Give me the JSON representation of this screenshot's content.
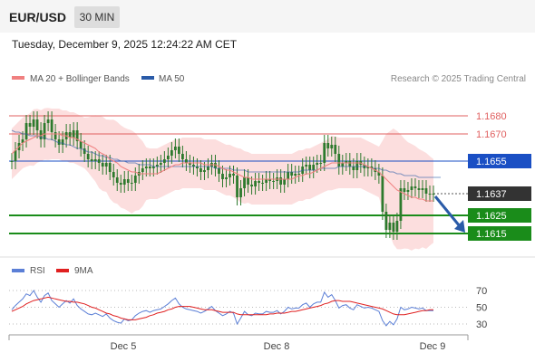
{
  "header": {
    "symbol": "EUR/USD",
    "timeframe": "30 MIN"
  },
  "datetime": "Tuesday, December 9, 2025 12:24:22 AM CET",
  "legend": {
    "ma20_label": "MA 20 + Bollinger Bands",
    "ma50_label": "MA 50",
    "credit": "Research © 2025 Trading Central",
    "rsi_label": "RSI",
    "rsi_ma_label": "9MA"
  },
  "colors": {
    "ma20": "#f08080",
    "ma50": "#2a5ba8",
    "band_fill": "#fbd3d3",
    "candle": "#2d7a2d",
    "resistance": "#e06060",
    "pivot": "#1a4fc4",
    "support": "#1a8c1a",
    "last_price": "#333333",
    "arrow": "#2a5ba8",
    "rsi": "#5b7fd6",
    "rsi_ma": "#e02020"
  },
  "chart_data": [
    {
      "type": "line",
      "name": "price",
      "ylim": [
        1.1608,
        1.1688
      ],
      "x_ticks": [
        "Dec 5",
        "Dec 8",
        "Dec 9"
      ],
      "levels": [
        {
          "value": 1.168,
          "label": "1.1680",
          "role": "resistance"
        },
        {
          "value": 1.167,
          "label": "1.1670",
          "role": "resistance"
        },
        {
          "value": 1.1655,
          "label": "1.1655",
          "role": "pivot"
        },
        {
          "value": 1.1637,
          "label": "1.1637",
          "role": "last"
        },
        {
          "value": 1.1625,
          "label": "1.1625",
          "role": "support"
        },
        {
          "value": 1.1615,
          "label": "1.1615",
          "role": "support"
        }
      ],
      "close": [
        1.1655,
        1.1661,
        1.1665,
        1.1667,
        1.1676,
        1.1674,
        1.1678,
        1.1672,
        1.1667,
        1.1676,
        1.1678,
        1.1671,
        1.1667,
        1.1664,
        1.1667,
        1.1671,
        1.1668,
        1.1672,
        1.1666,
        1.1662,
        1.1659,
        1.1656,
        1.1655,
        1.1656,
        1.1654,
        1.1652,
        1.1654,
        1.1649,
        1.1646,
        1.1643,
        1.1642,
        1.1645,
        1.1643,
        1.1643,
        1.1647,
        1.1649,
        1.1651,
        1.1652,
        1.1651,
        1.1652,
        1.1653,
        1.1654,
        1.1656,
        1.1658,
        1.1661,
        1.1663,
        1.1659,
        1.1656,
        1.1654,
        1.1653,
        1.1652,
        1.1651,
        1.1649,
        1.165,
        1.1652,
        1.1654,
        1.1651,
        1.1648,
        1.1645,
        1.1646,
        1.1648,
        1.1647,
        1.1635,
        1.164,
        1.1646,
        1.1642,
        1.1641,
        1.1644,
        1.1643,
        1.1643,
        1.1645,
        1.1644,
        1.1644,
        1.1646,
        1.1642,
        1.1645,
        1.1649,
        1.1647,
        1.1648,
        1.1648,
        1.1652,
        1.1653,
        1.165,
        1.1653,
        1.1654,
        1.1654,
        1.1665,
        1.1662,
        1.1664,
        1.1659,
        1.1652,
        1.1654,
        1.1655,
        1.1652,
        1.165,
        1.1655,
        1.1653,
        1.1651,
        1.1652,
        1.1651,
        1.1649,
        1.1647,
        1.1627,
        1.1617,
        1.1621,
        1.1616,
        1.1622,
        1.164,
        1.1638,
        1.1639,
        1.1641,
        1.164,
        1.1639,
        1.164,
        1.1637,
        1.1637,
        1.1637
      ],
      "ma20": [
        1.1659,
        1.1661,
        1.1663,
        1.1665,
        1.1666,
        1.1667,
        1.1668,
        1.1669,
        1.1669,
        1.167,
        1.167,
        1.167,
        1.167,
        1.167,
        1.1669,
        1.1669,
        1.1668,
        1.1668,
        1.1667,
        1.1666,
        1.1665,
        1.1664,
        1.1663,
        1.1662,
        1.166,
        1.1659,
        1.1658,
        1.1656,
        1.1655,
        1.1654,
        1.1652,
        1.1651,
        1.165,
        1.1649,
        1.1649,
        1.1648,
        1.1648,
        1.1648,
        1.1648,
        1.1648,
        1.1648,
        1.1649,
        1.165,
        1.1651,
        1.1652,
        1.1653,
        1.1653,
        1.1654,
        1.1654,
        1.1654,
        1.1654,
        1.1654,
        1.1654,
        1.1653,
        1.1653,
        1.1653,
        1.1653,
        1.1652,
        1.1651,
        1.165,
        1.165,
        1.1649,
        1.1648,
        1.1647,
        1.1646,
        1.1646,
        1.1645,
        1.1645,
        1.1645,
        1.1645,
        1.1645,
        1.1645,
        1.1645,
        1.1645,
        1.1645,
        1.1645,
        1.1645,
        1.1645,
        1.1646,
        1.1647,
        1.1647,
        1.1648,
        1.1648,
        1.1649,
        1.165,
        1.1651,
        1.1652,
        1.1653,
        1.1654,
        1.1654,
        1.1654,
        1.1654,
        1.1654,
        1.1654,
        1.1654,
        1.1654,
        1.1654,
        1.1653,
        1.1652,
        1.1651,
        1.165,
        1.1649,
        1.1647,
        1.1645,
        1.1643,
        1.1641,
        1.1639,
        1.1638,
        1.1637,
        1.1636,
        1.1635,
        1.1635,
        1.1634,
        1.1634,
        1.1633,
        1.1633,
        1.1633
      ],
      "ma50": [
        1.1672,
        1.1671,
        1.1671,
        1.167,
        1.167,
        1.1669,
        1.1669,
        1.1669,
        1.1668,
        1.1668,
        1.1667,
        1.1667,
        1.1666,
        1.1665,
        1.1665,
        1.1664,
        1.1664,
        1.1663,
        1.1662,
        1.1662,
        1.1661,
        1.166,
        1.166,
        1.1659,
        1.1658,
        1.1658,
        1.1657,
        1.1657,
        1.1656,
        1.1656,
        1.1655,
        1.1655,
        1.1654,
        1.1654,
        1.1654,
        1.1653,
        1.1653,
        1.1653,
        1.1653,
        1.1652,
        1.1652,
        1.1652,
        1.1652,
        1.1652,
        1.1652,
        1.1652,
        1.1652,
        1.1652,
        1.1652,
        1.1652,
        1.1652,
        1.1652,
        1.1652,
        1.1652,
        1.1652,
        1.1652,
        1.1651,
        1.1651,
        1.1651,
        1.1651,
        1.1651,
        1.165,
        1.165,
        1.165,
        1.165,
        1.1649,
        1.1649,
        1.1649,
        1.1649,
        1.1649,
        1.1649,
        1.1649,
        1.1649,
        1.1649,
        1.1649,
        1.1649,
        1.1649,
        1.1649,
        1.1649,
        1.1649,
        1.165,
        1.165,
        1.165,
        1.165,
        1.165,
        1.1651,
        1.1651,
        1.1651,
        1.1651,
        1.1651,
        1.1652,
        1.1652,
        1.1652,
        1.1652,
        1.1652,
        1.1652,
        1.1652,
        1.1652,
        1.1652,
        1.1651,
        1.1651,
        1.1651,
        1.165,
        1.165,
        1.1649,
        1.1649,
        1.1648,
        1.1648,
        1.1647,
        1.1647,
        1.1647,
        1.1647,
        1.1646,
        1.1646,
        1.1646,
        1.1646,
        1.1646,
        1.1646,
        1.1646
      ]
    },
    {
      "type": "line",
      "name": "RSI",
      "ylim": [
        20,
        80
      ],
      "y_ticks": [
        70,
        50,
        30
      ],
      "rsi": [
        47,
        52,
        56,
        60,
        66,
        64,
        70,
        62,
        56,
        64,
        67,
        58,
        54,
        50,
        54,
        58,
        55,
        60,
        52,
        48,
        45,
        42,
        41,
        43,
        41,
        39,
        42,
        37,
        34,
        32,
        31,
        36,
        34,
        35,
        40,
        43,
        45,
        46,
        44,
        46,
        47,
        48,
        51,
        54,
        58,
        61,
        54,
        50,
        48,
        47,
        46,
        45,
        43,
        45,
        48,
        51,
        46,
        43,
        40,
        42,
        45,
        43,
        30,
        37,
        45,
        41,
        40,
        43,
        42,
        42,
        45,
        44,
        44,
        46,
        42,
        45,
        50,
        48,
        49,
        49,
        53,
        55,
        50,
        54,
        56,
        56,
        68,
        62,
        65,
        58,
        49,
        52,
        53,
        49,
        47,
        53,
        51,
        49,
        50,
        49,
        47,
        45,
        34,
        28,
        33,
        29,
        36,
        50,
        47,
        48,
        50,
        49,
        48,
        49,
        46,
        46,
        46
      ],
      "rsi_ma": [
        45,
        47,
        49,
        51,
        54,
        56,
        58,
        59,
        60,
        61,
        62,
        61,
        60,
        59,
        58,
        57,
        57,
        56,
        56,
        55,
        54,
        52,
        50,
        49,
        47,
        45,
        43,
        42,
        40,
        39,
        37,
        36,
        35,
        35,
        35,
        36,
        37,
        38,
        40,
        41,
        43,
        44,
        45,
        47,
        48,
        50,
        51,
        51,
        51,
        51,
        50,
        49,
        48,
        47,
        47,
        47,
        46,
        45,
        44,
        44,
        44,
        44,
        42,
        41,
        41,
        41,
        41,
        41,
        41,
        41,
        41,
        42,
        42,
        43,
        43,
        43,
        44,
        45,
        45,
        46,
        47,
        48,
        49,
        50,
        51,
        52,
        54,
        55,
        57,
        58,
        58,
        57,
        57,
        57,
        56,
        55,
        54,
        53,
        52,
        51,
        50,
        49,
        48,
        46,
        44,
        42,
        41,
        41,
        41,
        42,
        43,
        44,
        45,
        46,
        46,
        47,
        47
      ]
    }
  ]
}
